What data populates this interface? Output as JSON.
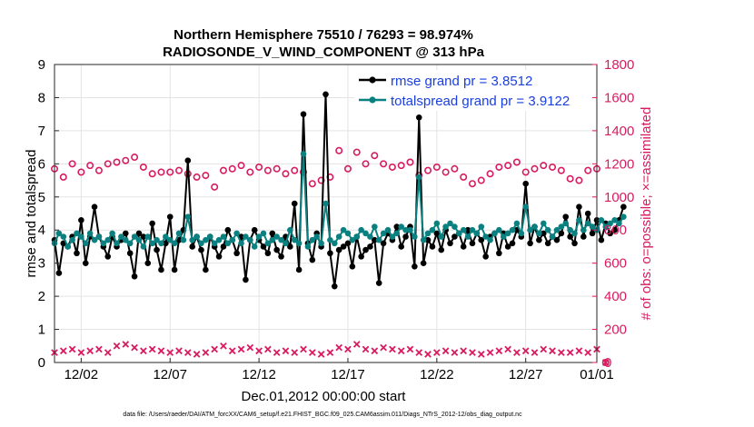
{
  "chart_data": {
    "type": "line",
    "title_line1": "Northern Hemisphere 75510 / 76293 = 98.974%",
    "title_line2": "RADIOSONDE_V_WIND_COMPONENT @ 313 hPa",
    "xlabel": "Dec.01,2012 00:00:00 start",
    "ylabel_left": "rmse and totalspread",
    "ylabel_right": "# of obs: o=possible; ×=assimilated",
    "footnote": "data file: /Users/raeder/DAI/ATM_forcXX/CAM6_setup/f.e21.FHIST_BGC.f09_025.CAM6assim.011/Diags_NTrS_2012-12/obs_diag_output.nc",
    "x_range": [
      0.5,
      31.0
    ],
    "ylim_left": [
      0,
      9
    ],
    "ylim_right": [
      0,
      1800
    ],
    "x_ticks": [
      {
        "value": 2,
        "label": "12/02"
      },
      {
        "value": 7,
        "label": "12/07"
      },
      {
        "value": 12,
        "label": "12/12"
      },
      {
        "value": 17,
        "label": "12/17"
      },
      {
        "value": 22,
        "label": "12/22"
      },
      {
        "value": 27,
        "label": "12/27"
      },
      {
        "value": 32,
        "label": "01/01"
      }
    ],
    "y_ticks_left": [
      "0",
      "1",
      "2",
      "3",
      "4",
      "5",
      "6",
      "7",
      "8",
      "9"
    ],
    "y_ticks_right": [
      "0",
      "200",
      "400",
      "600",
      "800",
      "1000",
      "1200",
      "1400",
      "1600",
      "1800"
    ],
    "legend": {
      "position": "top-right"
    },
    "colors": {
      "rmse": "#000000",
      "spread": "#0a8080",
      "obs": "#d81b60",
      "legend_text": "#1a3fe0"
    },
    "series": [
      {
        "name": "rmse grand pr = 3.8512",
        "axis": "left",
        "x_start": 0.5,
        "x_step": 0.25,
        "values": [
          3.7,
          2.7,
          3.6,
          3.5,
          3.8,
          3.3,
          4.3,
          3.0,
          3.8,
          4.7,
          3.8,
          3.5,
          3.2,
          3.8,
          3.5,
          3.7,
          3.9,
          3.3,
          2.6,
          3.9,
          3.8,
          3.0,
          4.2,
          3.4,
          2.8,
          3.6,
          4.4,
          2.8,
          3.7,
          4.0,
          6.1,
          3.5,
          3.8,
          3.4,
          2.8,
          3.8,
          3.5,
          3.2,
          3.5,
          4.0,
          3.7,
          3.3,
          3.8,
          2.5,
          3.7,
          4.0,
          3.7,
          3.5,
          3.3,
          3.9,
          3.4,
          3.2,
          3.8,
          3.5,
          4.8,
          2.8,
          7.5,
          3.6,
          3.1,
          3.9,
          3.5,
          8.1,
          3.3,
          2.3,
          3.4,
          3.5,
          3.6,
          2.9,
          3.8,
          3.2,
          3.4,
          3.5,
          3.7,
          2.4,
          3.6,
          3.9,
          3.7,
          4.1,
          3.5,
          3.8,
          4.1,
          2.9,
          7.4,
          3.0,
          3.7,
          3.5,
          3.9,
          3.4,
          4.0,
          3.6,
          3.8,
          3.9,
          3.5,
          4.0,
          3.6,
          3.9,
          3.7,
          3.2,
          3.8,
          3.9,
          3.3,
          3.9,
          3.5,
          3.6,
          4.0,
          3.8,
          5.4,
          3.6,
          4.1,
          3.7,
          3.9,
          3.6,
          3.8,
          3.7,
          3.9,
          4.4,
          3.8,
          3.6,
          4.7,
          3.8,
          4.5,
          3.9,
          4.3,
          3.7,
          4.2,
          3.9,
          4.0,
          4.3,
          4.7
        ]
      },
      {
        "name": "totalspread grand pr = 3.9122",
        "axis": "left",
        "x_start": 0.5,
        "x_step": 0.25,
        "values": [
          3.6,
          3.9,
          3.8,
          3.5,
          3.7,
          3.9,
          3.8,
          3.6,
          3.9,
          3.7,
          3.8,
          3.6,
          3.7,
          3.9,
          3.6,
          3.8,
          3.7,
          3.6,
          3.8,
          3.7,
          3.5,
          3.8,
          3.6,
          3.7,
          3.6,
          3.8,
          3.7,
          3.6,
          3.9,
          3.7,
          4.4,
          3.7,
          3.8,
          3.6,
          3.7,
          3.8,
          3.6,
          3.7,
          3.8,
          3.6,
          3.7,
          3.9,
          3.6,
          3.8,
          3.7,
          3.5,
          3.8,
          3.9,
          3.6,
          3.7,
          3.8,
          3.7,
          3.6,
          4.0,
          3.7,
          3.6,
          6.3,
          3.5,
          3.7,
          3.8,
          3.6,
          4.8,
          3.7,
          3.6,
          3.8,
          4.0,
          3.9,
          3.7,
          3.8,
          4.0,
          3.9,
          3.8,
          4.1,
          3.7,
          3.9,
          4.0,
          3.8,
          3.9,
          4.1,
          4.0,
          4.0,
          3.8,
          5.6,
          3.7,
          3.9,
          4.0,
          4.2,
          3.8,
          4.1,
          4.2,
          4.1,
          3.9,
          4.0,
          3.8,
          4.0,
          3.9,
          4.1,
          3.8,
          3.7,
          3.9,
          4.0,
          3.8,
          3.9,
          4.0,
          4.2,
          3.9,
          4.7,
          4.0,
          4.1,
          3.9,
          4.2,
          4.0,
          3.8,
          4.0,
          4.1,
          4.2,
          4.0,
          3.9,
          4.3,
          4.0,
          4.2,
          4.1,
          4.0,
          4.3,
          4.1,
          4.2,
          4.3,
          4.2,
          4.4
        ]
      },
      {
        "name": "obs possible",
        "axis": "right",
        "marker": "circle",
        "x_start": 0.5,
        "x_step": 0.5,
        "values": [
          1170,
          1120,
          1200,
          1150,
          1190,
          1160,
          1200,
          1210,
          1220,
          1240,
          1180,
          1140,
          1150,
          1150,
          1160,
          1140,
          1120,
          1130,
          1060,
          1160,
          1170,
          1190,
          1150,
          1180,
          1160,
          1170,
          1140,
          1160,
          1150,
          1080,
          1100,
          1120,
          1280,
          1170,
          1270,
          1200,
          1250,
          1200,
          1180,
          1190,
          1210,
          1130,
          1160,
          1180,
          1150,
          1170,
          1120,
          1080,
          1100,
          1140,
          1180,
          1190,
          1210,
          1150,
          1170,
          1190,
          1180,
          1160,
          1110,
          1100,
          1160,
          1170,
          0
        ]
      },
      {
        "name": "obs assimilated",
        "axis": "right",
        "marker": "x",
        "x_start": 0.5,
        "x_step": 0.5,
        "values": [
          60,
          70,
          80,
          60,
          70,
          80,
          60,
          100,
          110,
          90,
          70,
          80,
          70,
          60,
          70,
          60,
          50,
          60,
          80,
          100,
          70,
          80,
          90,
          70,
          80,
          60,
          70,
          60,
          80,
          60,
          50,
          60,
          90,
          80,
          110,
          80,
          70,
          90,
          80,
          70,
          80,
          60,
          50,
          60,
          70,
          60,
          70,
          60,
          50,
          60,
          70,
          80,
          60,
          70,
          60,
          80,
          70,
          60,
          60,
          70,
          60,
          80,
          0
        ]
      }
    ]
  }
}
